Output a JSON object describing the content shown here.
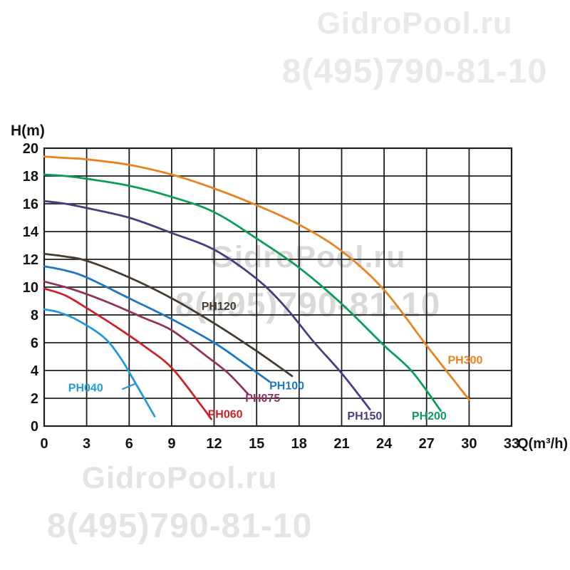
{
  "watermarks": [
    {
      "id": "top-right",
      "line1": "GidroPool.ru",
      "line2": "8(495)790-81-10",
      "color": "#e9e9e9"
    },
    {
      "id": "center",
      "line1": "GidroPool.ru",
      "line2": "8(495)790-81-10",
      "color": "#d9d9d9"
    },
    {
      "id": "bottom-left",
      "line1": "GidroPool.ru",
      "line2": "8(495)790-81-10",
      "color": "#e4e4e4"
    }
  ],
  "chart_data": {
    "type": "line",
    "title": "",
    "xlabel": "Q(m³/h)",
    "ylabel": "H(m)",
    "xlim": [
      0,
      33
    ],
    "ylim": [
      0,
      20
    ],
    "x_ticks": [
      0,
      3,
      6,
      9,
      12,
      15,
      18,
      21,
      24,
      27,
      30,
      33
    ],
    "y_ticks": [
      0,
      2,
      4,
      6,
      8,
      10,
      12,
      14,
      16,
      18,
      20
    ],
    "grid": true,
    "grid_color": "#1e1e1e",
    "tick_color": "#141414",
    "legend_position": "labels-on-curves",
    "series": [
      {
        "name": "PH040",
        "color": "#219CD8",
        "label_xy": [
          1.7,
          2.5
        ],
        "leader": [
          [
            5.5,
            2.65
          ],
          [
            6.45,
            3.05
          ]
        ],
        "points": [
          [
            0,
            8.4
          ],
          [
            1,
            8.2
          ],
          [
            2.4,
            7.6
          ],
          [
            4.2,
            6.4
          ],
          [
            5.4,
            4.9
          ],
          [
            6.5,
            3.0
          ],
          [
            7.8,
            0.7
          ]
        ]
      },
      {
        "name": "PH060",
        "color": "#CB2227",
        "label_xy": [
          11.55,
          0.6
        ],
        "points": [
          [
            0,
            9.9
          ],
          [
            1.5,
            9.4
          ],
          [
            3,
            8.5
          ],
          [
            5,
            7.2
          ],
          [
            7,
            5.8
          ],
          [
            9,
            4.2
          ],
          [
            11,
            1.6
          ],
          [
            11.8,
            0.5
          ]
        ]
      },
      {
        "name": "PH075",
        "color": "#92335D",
        "label_xy": [
          14.2,
          1.75
        ],
        "points": [
          [
            0,
            10.4
          ],
          [
            1.5,
            10.0
          ],
          [
            3,
            9.5
          ],
          [
            5,
            8.7
          ],
          [
            7,
            7.8
          ],
          [
            9,
            6.9
          ],
          [
            11.5,
            5.0
          ],
          [
            13,
            3.8
          ],
          [
            14.4,
            2.3
          ]
        ]
      },
      {
        "name": "PH100",
        "color": "#1C78C2",
        "label_xy": [
          15.9,
          2.65
        ],
        "points": [
          [
            0,
            11.5
          ],
          [
            1.5,
            11.2
          ],
          [
            3,
            10.7
          ],
          [
            6,
            9.2
          ],
          [
            9,
            7.7
          ],
          [
            12,
            6.0
          ],
          [
            14,
            4.6
          ],
          [
            15.9,
            3.2
          ]
        ]
      },
      {
        "name": "PH120",
        "color": "#473B2E",
        "label_xy": [
          11.1,
          8.35
        ],
        "points": [
          [
            0,
            12.4
          ],
          [
            1.5,
            12.2
          ],
          [
            3,
            11.9
          ],
          [
            6,
            10.7
          ],
          [
            9,
            9.2
          ],
          [
            12,
            7.4
          ],
          [
            15,
            5.4
          ],
          [
            17.5,
            3.6
          ]
        ]
      },
      {
        "name": "PH150",
        "color": "#453F82",
        "label_xy": [
          21.4,
          0.45
        ],
        "points": [
          [
            0,
            16.2
          ],
          [
            1.5,
            16.0
          ],
          [
            3,
            15.7
          ],
          [
            6,
            15.0
          ],
          [
            9,
            13.9
          ],
          [
            12,
            12.7
          ],
          [
            15,
            10.6
          ],
          [
            17,
            8.6
          ],
          [
            19,
            6.1
          ],
          [
            21,
            3.8
          ],
          [
            23,
            1.2
          ]
        ]
      },
      {
        "name": "PH200",
        "color": "#0A9E56",
        "label_xy": [
          25.95,
          0.45
        ],
        "points": [
          [
            0,
            18.1
          ],
          [
            1.5,
            18.0
          ],
          [
            3,
            17.8
          ],
          [
            6,
            17.3
          ],
          [
            9,
            16.5
          ],
          [
            12,
            15.4
          ],
          [
            15,
            13.5
          ],
          [
            18,
            11.4
          ],
          [
            21,
            8.8
          ],
          [
            24,
            5.8
          ],
          [
            26,
            3.9
          ],
          [
            28,
            1.1
          ]
        ]
      },
      {
        "name": "PH300",
        "color": "#EA831F",
        "label_xy": [
          28.5,
          4.5
        ],
        "points": [
          [
            0,
            19.4
          ],
          [
            1.5,
            19.3
          ],
          [
            3,
            19.2
          ],
          [
            6,
            18.8
          ],
          [
            9,
            18.1
          ],
          [
            12,
            17.1
          ],
          [
            15,
            15.9
          ],
          [
            18,
            14.5
          ],
          [
            21,
            12.6
          ],
          [
            24,
            9.8
          ],
          [
            27,
            5.8
          ],
          [
            30,
            1.9
          ]
        ]
      }
    ]
  }
}
